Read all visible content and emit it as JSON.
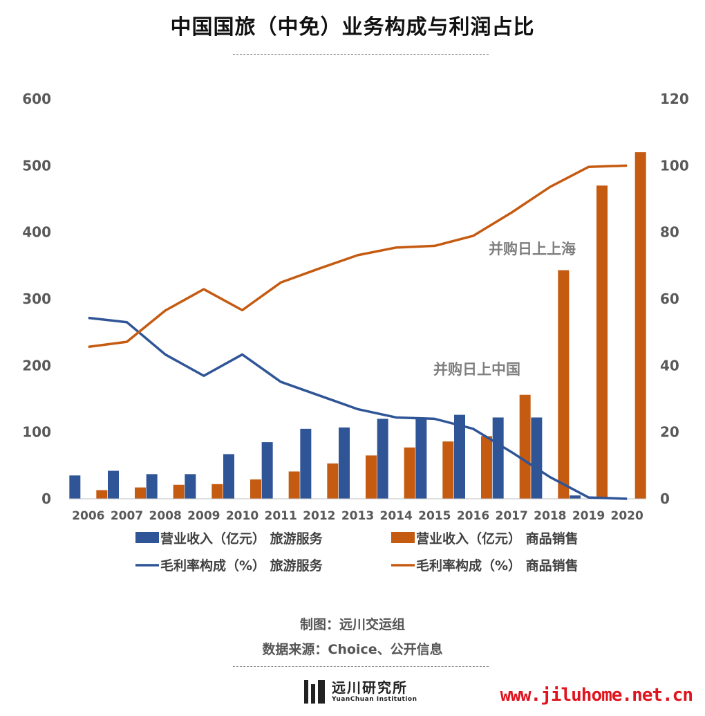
{
  "title": "中国国旅（中免）业务构成与利润占比",
  "chart_data": {
    "type": "bar+line",
    "categories": [
      "2006",
      "2007",
      "2008",
      "2009",
      "2010",
      "2011",
      "2012",
      "2013",
      "2014",
      "2015",
      "2016",
      "2017",
      "2018",
      "2019",
      "2020"
    ],
    "y_left": {
      "min": 0,
      "max": 600,
      "ticks": [
        0,
        100,
        200,
        300,
        400,
        500,
        600
      ]
    },
    "y_right": {
      "min": 0,
      "max": 120,
      "ticks": [
        0,
        20,
        40,
        60,
        80,
        100,
        120
      ]
    },
    "bar_series": [
      {
        "name": "营业收入（亿元） 旅游服务",
        "color": "#2f5597",
        "values": [
          35,
          42,
          37,
          37,
          67,
          85,
          105,
          107,
          120,
          122,
          126,
          122,
          122,
          5,
          0
        ]
      },
      {
        "name": "营业收入（亿元） 商品销售",
        "color": "#c55a11",
        "values": [
          13,
          17,
          21,
          22,
          29,
          41,
          53,
          65,
          77,
          86,
          94,
          156,
          343,
          470,
          520
        ]
      }
    ],
    "line_series": [
      {
        "name": "毛利率构成（%） 旅游服务",
        "color": "#2f5597",
        "values": [
          54.3,
          53,
          43.3,
          36.9,
          43.3,
          35.1,
          31,
          26.9,
          24.4,
          24,
          21,
          14,
          6.5,
          0.4,
          0
        ]
      },
      {
        "name": "毛利率构成（%） 商品销售",
        "color": "#c55a11",
        "values": [
          45.6,
          47.1,
          56.5,
          62.9,
          56.6,
          64.9,
          69.1,
          73.1,
          75.4,
          75.9,
          78.9,
          85.9,
          93.6,
          99.6,
          100
        ]
      }
    ],
    "annotations": [
      {
        "text": "并购日上中国",
        "year": "2017"
      },
      {
        "text": "并购日上上海",
        "year": "2018"
      }
    ]
  },
  "credits": {
    "maker": "制图：远川交运组",
    "source": "数据来源：Choice、公开信息"
  },
  "logo": {
    "name_cn": "远川研究所",
    "name_en": "YuanChuan Institution"
  },
  "watermark": "www.jiluhome.net.cn"
}
